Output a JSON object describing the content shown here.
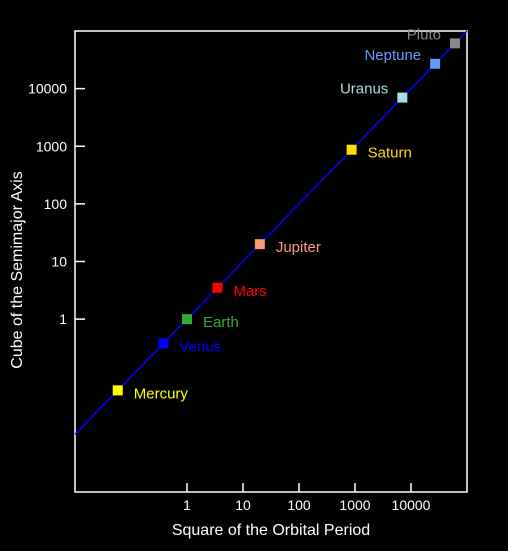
{
  "chart_data": {
    "type": "scatter",
    "title": "",
    "xlabel": "Square of the Orbital Period",
    "ylabel": "Cube of the Semimajor Axis",
    "scale": "log",
    "xlim": [
      0.01,
      100000
    ],
    "ylim": [
      0.001,
      100000
    ],
    "x_ticks": [
      1,
      10,
      100,
      1000,
      10000
    ],
    "x_tick_labels": [
      "1",
      "10",
      "100",
      "1000",
      "10000"
    ],
    "y_ticks": [
      1,
      10,
      100,
      1000,
      10000
    ],
    "y_tick_labels": [
      "1",
      "10",
      "100",
      "1000",
      "10000"
    ],
    "grid": false,
    "fit_line": {
      "slope": 1,
      "color": "#0000ff"
    },
    "points": [
      {
        "label": "Mercury",
        "x": 0.058,
        "y": 0.058,
        "color": "#ffff00"
      },
      {
        "label": "Venus",
        "x": 0.38,
        "y": 0.38,
        "color": "#0000ff"
      },
      {
        "label": "Earth",
        "x": 1,
        "y": 1,
        "color": "#33aa33"
      },
      {
        "label": "Mars",
        "x": 3.5,
        "y": 3.5,
        "color": "#ff0000"
      },
      {
        "label": "Jupiter",
        "x": 20,
        "y": 20,
        "color": "#ff9980"
      },
      {
        "label": "Saturn",
        "x": 870,
        "y": 870,
        "color": "#ffdd00"
      },
      {
        "label": "Uranus",
        "x": 7000,
        "y": 7000,
        "color": "#aadddd"
      },
      {
        "label": "Neptune",
        "x": 27000,
        "y": 27000,
        "color": "#6699ff"
      },
      {
        "label": "Pluto",
        "x": 61000,
        "y": 61000,
        "color": "#888888"
      }
    ]
  }
}
